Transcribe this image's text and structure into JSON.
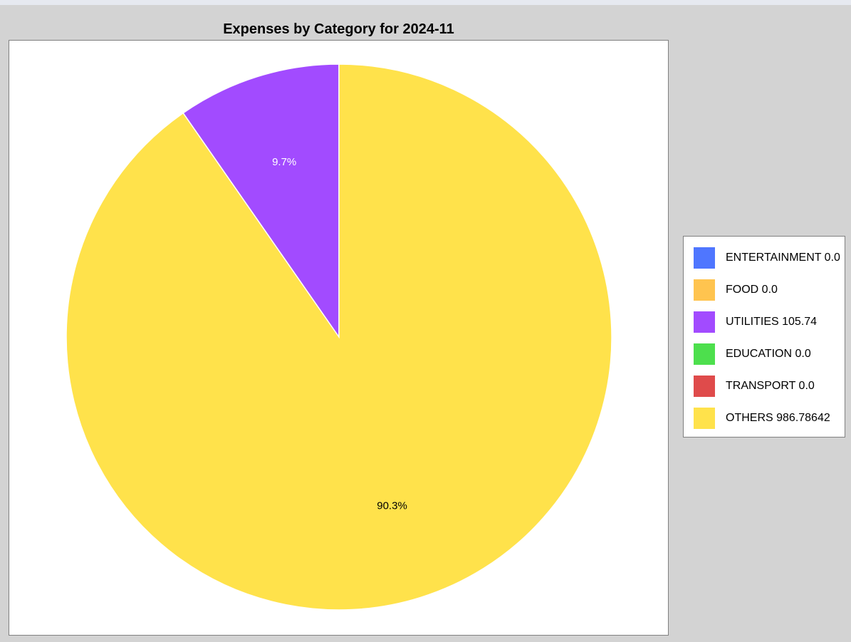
{
  "chart_data": {
    "type": "pie",
    "title": "Expenses by Category for 2024-11",
    "slices": [
      {
        "label": "ENTERTAINMENT",
        "value": 0.0,
        "display_value": "0.0",
        "color": "#4f76ff"
      },
      {
        "label": "FOOD",
        "value": 0.0,
        "display_value": "0.0",
        "color": "#ffc44f"
      },
      {
        "label": "UTILITIES",
        "value": 105.74,
        "display_value": "105.74",
        "color": "#a24bff",
        "percent_label": "9.7%"
      },
      {
        "label": "EDUCATION",
        "value": 0.0,
        "display_value": "0.0",
        "color": "#4ddf4d"
      },
      {
        "label": "TRANSPORT",
        "value": 0.0,
        "display_value": "0.0",
        "color": "#df4b4b"
      },
      {
        "label": "OTHERS",
        "value": 986.78642,
        "display_value": "986.78642",
        "color": "#ffe24b",
        "percent_label": "90.3%"
      }
    ],
    "legend_position": "right"
  }
}
